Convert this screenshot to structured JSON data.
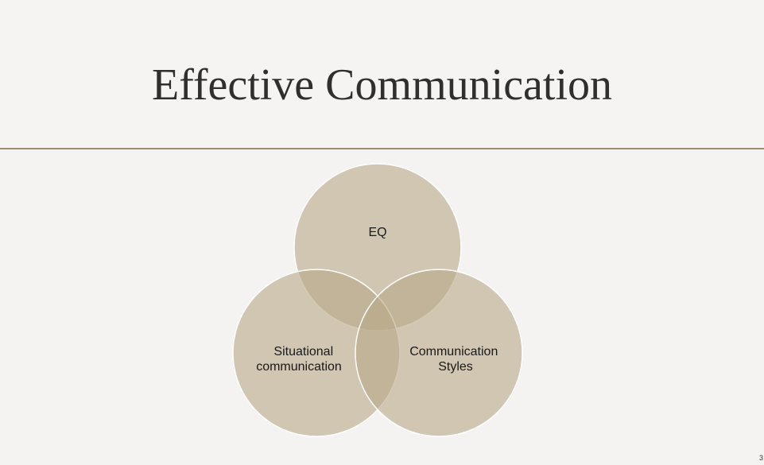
{
  "slide": {
    "title": "Effective Communication",
    "page_number": "3"
  },
  "venn": {
    "circles": [
      {
        "id": "eq",
        "lines": [
          "EQ"
        ]
      },
      {
        "id": "situational",
        "lines": [
          "Situational",
          "communication"
        ]
      },
      {
        "id": "styles",
        "lines": [
          "Communication",
          "Styles"
        ]
      }
    ]
  },
  "colors": {
    "background": "#f4f3f2",
    "rule": "#9c8c6e",
    "circle_fill": "#b7a887",
    "circle_stroke": "#ffffff"
  }
}
